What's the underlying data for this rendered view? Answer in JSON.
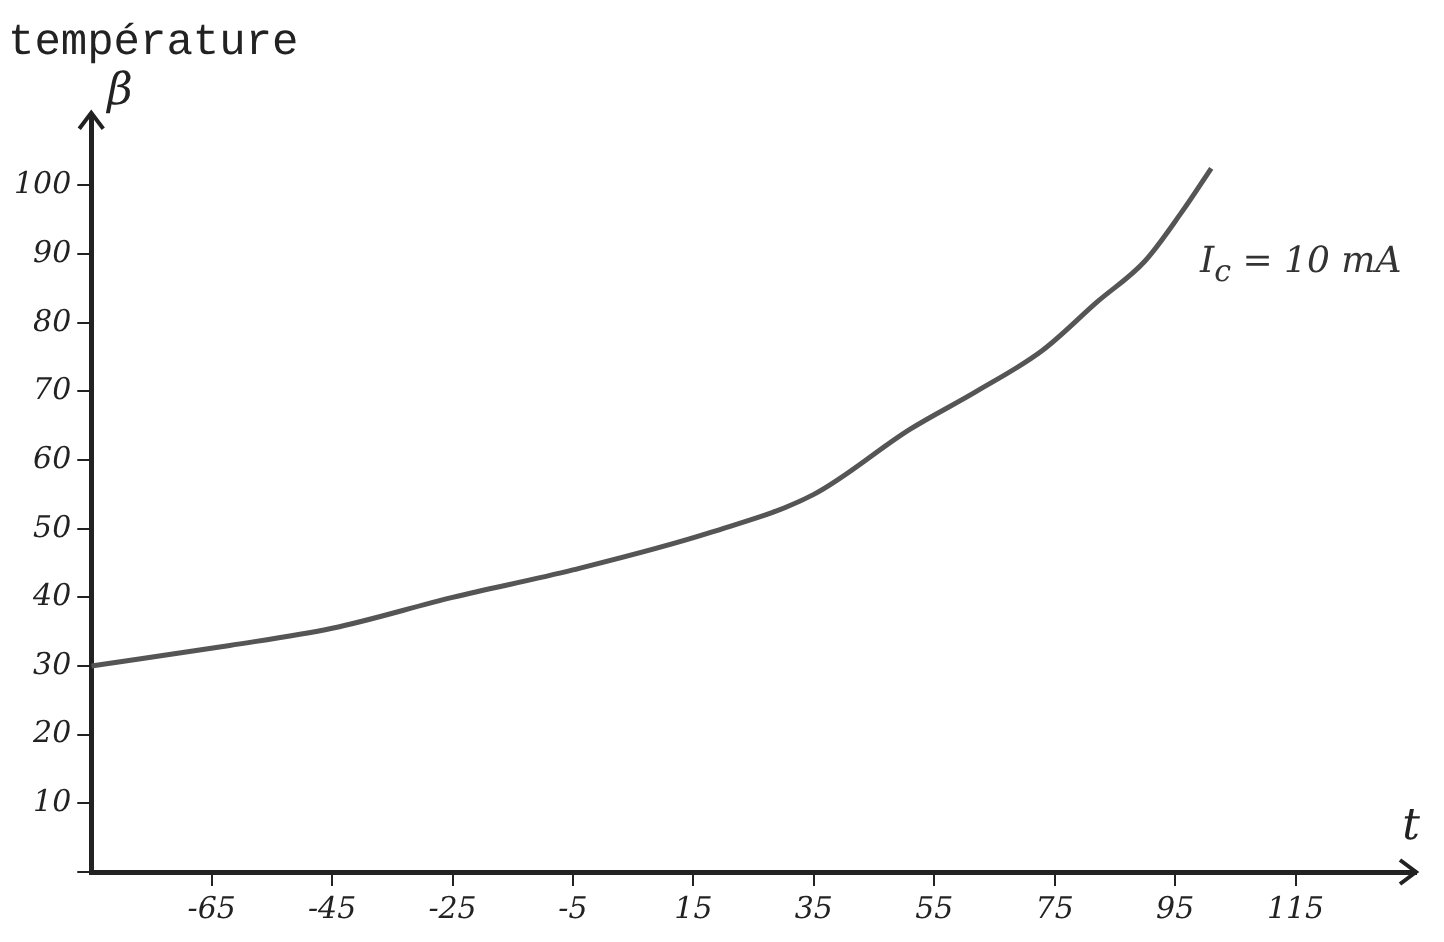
{
  "chart_data": {
    "type": "line",
    "title": "température",
    "xlabel": "t",
    "ylabel": "β",
    "annotations": [
      "I$_{c}$ = 10 mA"
    ],
    "x": [
      -85,
      -62,
      -45,
      -25,
      -5,
      18,
      35,
      51,
      62,
      73,
      82,
      90,
      96,
      101
    ],
    "series": [
      {
        "color": "#555555",
        "values": [
          30,
          33,
          35.5,
          40,
          44,
          49.5,
          55,
          64.5,
          70,
          76,
          83,
          89,
          96,
          102.5
        ]
      }
    ],
    "xlim": [
      -85,
      135
    ],
    "xticks": [
      -65,
      -45,
      -25,
      -5,
      15,
      35,
      55,
      75,
      95,
      115
    ],
    "ylim": [
      0,
      110
    ],
    "yticks": [
      {
        "value": 0,
        "label": null
      },
      10,
      20,
      30,
      40,
      50,
      60,
      70,
      80,
      90,
      100
    ],
    "grid": false,
    "legend": false,
    "marker": "none",
    "line_style": "solid"
  }
}
